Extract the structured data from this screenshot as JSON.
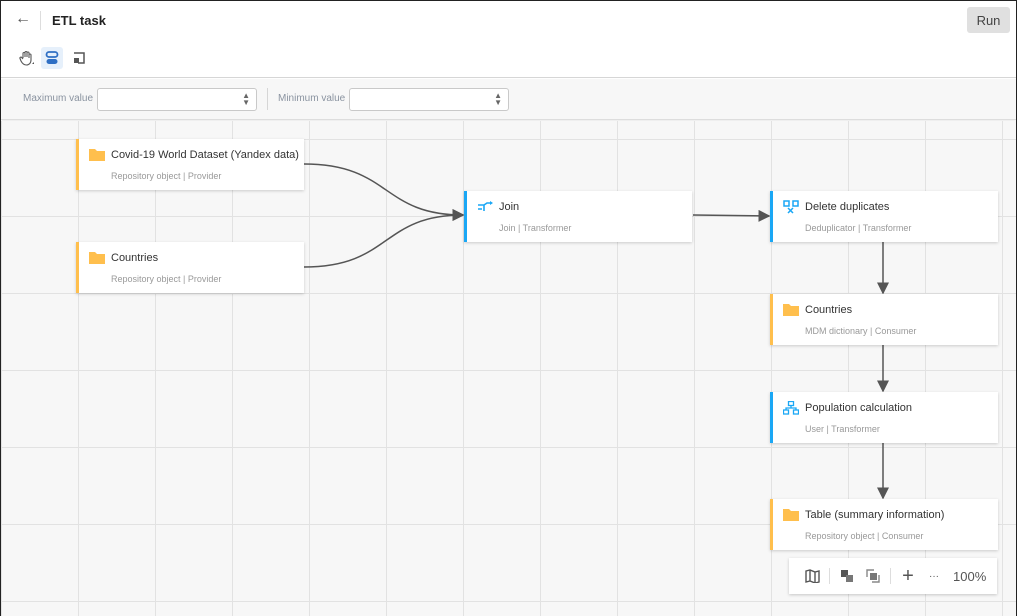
{
  "header": {
    "title": "ETL task",
    "run_label": "Run"
  },
  "toolbar": {
    "tools": [
      "hand-icon",
      "nodes-icon",
      "frame-icon"
    ]
  },
  "filters": {
    "max_label": "Maximum value",
    "max_value": "",
    "min_label": "Minimum value",
    "min_value": ""
  },
  "nodes": [
    {
      "title": "Covid-19 World Dataset (Yandex data)",
      "subtitle": "Repository object | Provider",
      "icon": "folder-icon",
      "color": "#ffbf4d"
    },
    {
      "title": "Countries",
      "subtitle": "Repository object | Provider",
      "icon": "folder-icon",
      "color": "#ffbf4d"
    },
    {
      "title": "Join",
      "subtitle": "Join | Transformer",
      "icon": "join-icon",
      "color": "#1aa7f5"
    },
    {
      "title": "Delete duplicates",
      "subtitle": "Deduplicator | Transformer",
      "icon": "deduplicate-icon",
      "color": "#1aa7f5"
    },
    {
      "title": "Countries",
      "subtitle": "MDM dictionary | Consumer",
      "icon": "folder-icon",
      "color": "#ffbf4d"
    },
    {
      "title": "Population calculation",
      "subtitle": "User | Transformer",
      "icon": "hierarchy-icon",
      "color": "#1aa7f5"
    },
    {
      "title": "Table (summary information)",
      "subtitle": "Repository object | Consumer",
      "icon": "folder-icon",
      "color": "#ffbf4d"
    }
  ],
  "zoom": {
    "level": "100%",
    "more": "···"
  }
}
